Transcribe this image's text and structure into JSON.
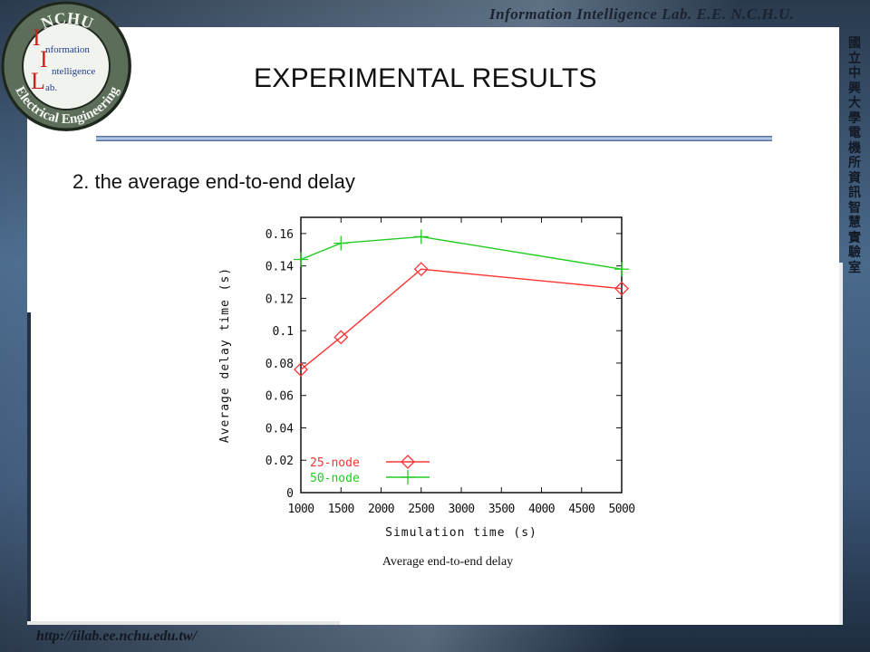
{
  "header": {
    "lab_name": "Information Intelligence Lab. E.E. N.C.H.U.",
    "side_text": "國立中興大學電機所資訊智慧實驗室"
  },
  "logo": {
    "top_text": "NCHU",
    "bottom_text": "Electrical Engineering",
    "line1": "nformation",
    "line2": "ntelligence",
    "line3": "ab.",
    "letters": [
      "I",
      "I",
      "L"
    ]
  },
  "slide": {
    "title": "EXPERIMENTAL RESULTS",
    "subtitle": "2. the average end-to-end delay"
  },
  "footer": {
    "url": "http://iilab.ee.nchu.edu.tw/"
  },
  "colors": {
    "series_25": "#ff3333",
    "series_50": "#22cc22",
    "rule": "#6f8fc0"
  },
  "chart_data": {
    "type": "line",
    "title": "",
    "caption": "Average end-to-end delay",
    "xlabel": "Simulation time (s)",
    "ylabel": "Average delay time (s)",
    "xlim": [
      1000,
      5000
    ],
    "ylim": [
      0,
      0.17
    ],
    "x_ticks": [
      1000,
      1500,
      2000,
      2500,
      3000,
      3500,
      4000,
      4500,
      5000
    ],
    "y_ticks": [
      0,
      0.02,
      0.04,
      0.06,
      0.08,
      0.1,
      0.12,
      0.14,
      0.16
    ],
    "y_tick_labels": [
      "0",
      "0.02",
      "0.04",
      "0.06",
      "0.08",
      "0.1",
      "0.12",
      "0.14",
      "0.16"
    ],
    "legend_position": "bottom-left",
    "grid": false,
    "series": [
      {
        "name": "25-node",
        "marker": "diamond",
        "color": "#ff3333",
        "x": [
          1000,
          1500,
          2500,
          5000
        ],
        "y": [
          0.076,
          0.096,
          0.138,
          0.126
        ]
      },
      {
        "name": "50-node",
        "marker": "plus",
        "color": "#22cc22",
        "x": [
          1000,
          1500,
          2500,
          5000
        ],
        "y": [
          0.144,
          0.154,
          0.158,
          0.138
        ]
      }
    ]
  }
}
